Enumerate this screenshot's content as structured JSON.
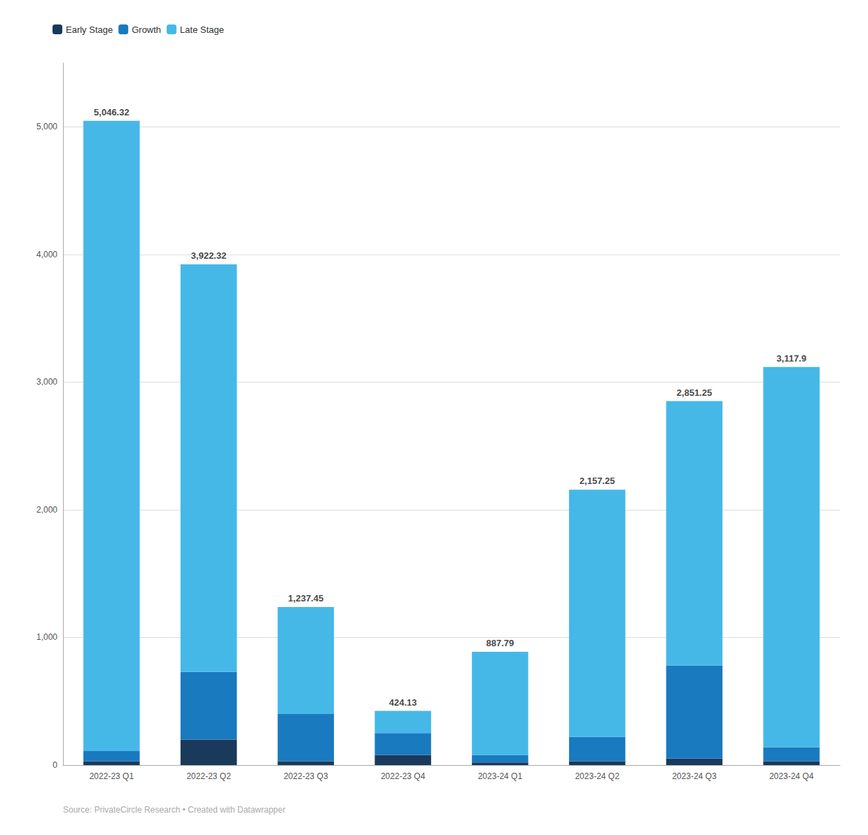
{
  "chart_data": {
    "type": "bar",
    "stacked": true,
    "categories": [
      "2022-23 Q1",
      "2022-23 Q2",
      "2022-23 Q3",
      "2022-23 Q4",
      "2023-24 Q1",
      "2023-24 Q2",
      "2023-24 Q3",
      "2023-24 Q4"
    ],
    "series": [
      {
        "name": "Early Stage",
        "color": "#1a3a5c",
        "values": [
          30,
          200,
          30,
          80,
          20,
          30,
          50,
          30
        ]
      },
      {
        "name": "Growth",
        "color": "#1a7abf",
        "values": [
          80,
          530,
          370,
          170,
          60,
          190,
          730,
          110
        ]
      },
      {
        "name": "Late Stage",
        "color": "#45b8e8",
        "values": [
          4936.32,
          3192.32,
          837.45,
          174.13,
          807.79,
          1937.25,
          2071.25,
          2977.9
        ]
      }
    ],
    "totals": [
      5046.32,
      3922.32,
      1237.45,
      424.13,
      887.79,
      2157.25,
      2851.25,
      3117.9
    ],
    "total_labels": [
      "5,046.32",
      "3,922.32",
      "1,237.45",
      "424.13",
      "887.79",
      "2,157.25",
      "2,851.25",
      "3,117.9"
    ],
    "ylim": [
      0,
      5500
    ],
    "yticks": [
      0,
      {
        "value": 1000,
        "label": "1,000"
      },
      {
        "value": 2000,
        "label": "2,000"
      },
      {
        "value": 3000,
        "label": "3,000"
      },
      {
        "value": 4000,
        "label": "4,000"
      },
      {
        "value": 5000,
        "label": "5,000"
      }
    ],
    "grid": true,
    "legend": "upper left",
    "source": "Source: PrivateCircle Research • Created with Datawrapper"
  }
}
